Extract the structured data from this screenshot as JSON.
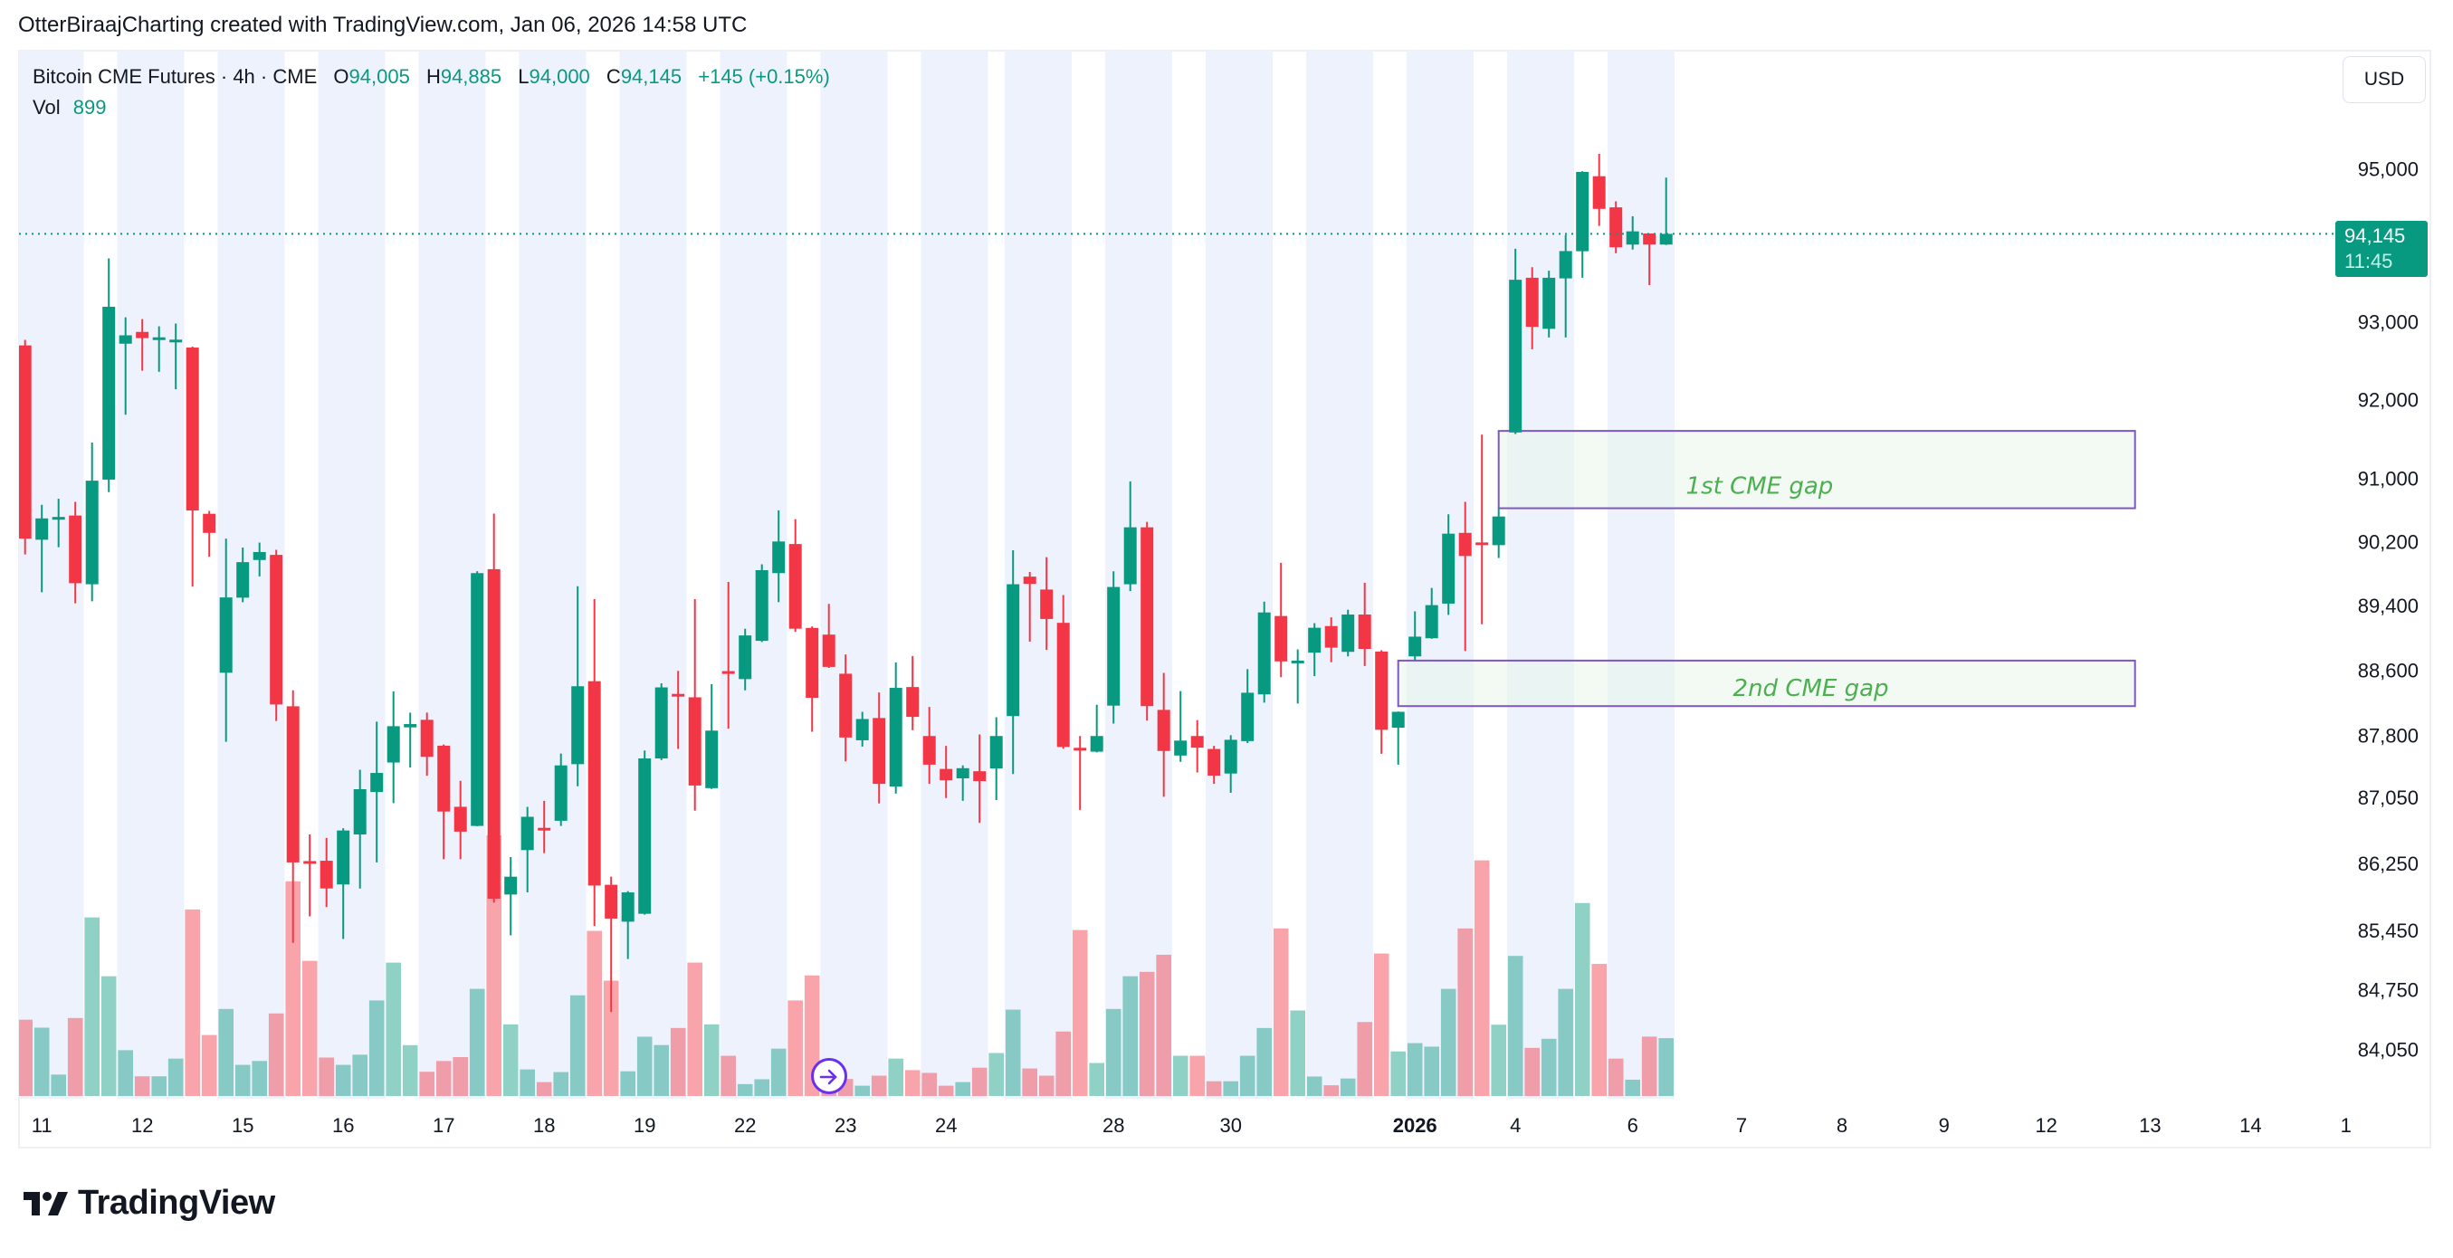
{
  "caption": "OtterBiraajCharting created with TradingView.com, Jan 06, 2026 14:58 UTC",
  "legend": {
    "symbol": "Bitcoin CME Futures",
    "sep": "·",
    "interval": "4h",
    "exchange": "CME",
    "o_label": "O",
    "o": "94,005",
    "h_label": "H",
    "h": "94,885",
    "l_label": "L",
    "l": "94,000",
    "c_label": "C",
    "c": "94,145",
    "change": "+145 (+0.15%)",
    "vol_label": "Vol",
    "vol": "899"
  },
  "currency_button": "USD",
  "last_price": {
    "price": "94,145",
    "countdown": "11:45"
  },
  "brand": "TradingView",
  "icons": {
    "navigate": "arrow-right-circle-icon",
    "logo": "tradingview-logo-icon"
  },
  "chart_data": {
    "type": "candlestick",
    "title": "",
    "price_scale": "log",
    "colors": {
      "up": "#089981",
      "down": "#F23645",
      "session_shade": "#EEF2FD",
      "box_border": "#7E57C2",
      "box_fill": "#E8F5E9",
      "box_text": "#4CAF50"
    },
    "last_price": 94145,
    "y_ticks": [
      95000,
      93000,
      92000,
      91000,
      90200,
      89400,
      88600,
      87800,
      87050,
      86250,
      85450,
      84750,
      84050
    ],
    "y_tick_labels": [
      "95,000",
      "93,000",
      "92,000",
      "91,000",
      "90,200",
      "89,400",
      "88,600",
      "87,800",
      "87,050",
      "86,250",
      "85,450",
      "84,750",
      "84,050"
    ],
    "x_ticks": [
      {
        "bar": 2,
        "label": "11"
      },
      {
        "bar": 8,
        "label": "12"
      },
      {
        "bar": 14,
        "label": "15"
      },
      {
        "bar": 20,
        "label": "16"
      },
      {
        "bar": 26,
        "label": "17"
      },
      {
        "bar": 32,
        "label": "18"
      },
      {
        "bar": 38,
        "label": "19"
      },
      {
        "bar": 44,
        "label": "22"
      },
      {
        "bar": 50,
        "label": "23"
      },
      {
        "bar": 56,
        "label": "24"
      },
      {
        "bar": 66,
        "label": "28"
      },
      {
        "bar": 73,
        "label": "30"
      },
      {
        "bar": 84,
        "label": "2026",
        "bold": true
      },
      {
        "bar": 90,
        "label": "4"
      },
      {
        "bar": 97,
        "label": "6"
      },
      {
        "bar": 103.5,
        "label": "7"
      },
      {
        "bar": 109.5,
        "label": "8"
      },
      {
        "bar": 115.6,
        "label": "9"
      },
      {
        "bar": 121.7,
        "label": "12"
      },
      {
        "bar": 127.9,
        "label": "13"
      },
      {
        "bar": 133.9,
        "label": "14"
      },
      {
        "bar": 139.6,
        "label": "1"
      }
    ],
    "off_session_bars": [
      5,
      6,
      11,
      12,
      17,
      18,
      23,
      24,
      29,
      30,
      35,
      36,
      41,
      42,
      47,
      48,
      53,
      54,
      59,
      64,
      65,
      70,
      71,
      76,
      77,
      82,
      83,
      88,
      89,
      94,
      95
    ],
    "bars_ohlcv": [
      [
        92696,
        92768,
        90040,
        90238,
        1186
      ],
      [
        90224,
        90664,
        89568,
        90492,
        1062
      ],
      [
        90480,
        90740,
        90130,
        90510,
        333
      ],
      [
        90528,
        90700,
        89430,
        89680,
        1212
      ],
      [
        89667,
        91452,
        89455,
        90968,
        2775
      ],
      [
        90982,
        93824,
        90824,
        93196,
        1861
      ],
      [
        92718,
        93058,
        91806,
        92826,
        712
      ],
      [
        92870,
        93036,
        92370,
        92790,
        306
      ],
      [
        92790,
        92942,
        92356,
        92800,
        306
      ],
      [
        92750,
        92978,
        92132,
        92770,
        581
      ],
      [
        92668,
        92680,
        89638,
        90592,
        2899
      ],
      [
        90550,
        90586,
        90010,
        90310,
        948
      ],
      [
        88570,
        90238,
        87723,
        89503,
        1353
      ],
      [
        89500,
        90126,
        89443,
        89943,
        484
      ],
      [
        89970,
        90188,
        89765,
        90070,
        544
      ],
      [
        90034,
        90098,
        87978,
        88180,
        1283
      ],
      [
        88158,
        88354,
        85305,
        86264,
        3336
      ],
      [
        86280,
        86600,
        85620,
        86250,
        2100
      ],
      [
        86284,
        86558,
        85730,
        85952,
        598
      ],
      [
        86000,
        86676,
        85350,
        86648,
        484
      ],
      [
        86600,
        87383,
        85952,
        87147,
        642
      ],
      [
        87113,
        87970,
        86264,
        87344,
        1485
      ],
      [
        87471,
        88340,
        86978,
        87914,
        2073
      ],
      [
        87900,
        88080,
        87410,
        87940,
        790
      ],
      [
        87992,
        88080,
        87310,
        87540,
        377
      ],
      [
        87676,
        87690,
        86303,
        86877,
        544
      ],
      [
        86934,
        87248,
        86303,
        86634,
        605
      ],
      [
        86703,
        89830,
        86700,
        89806,
        1665
      ],
      [
        89855,
        90552,
        85782,
        85830,
        4050
      ],
      [
        85880,
        86328,
        85394,
        86093,
        1113
      ],
      [
        86412,
        86934,
        85905,
        86813,
        413
      ],
      [
        86680,
        87006,
        86376,
        86650,
        216
      ],
      [
        86765,
        87580,
        86703,
        87436,
        372
      ],
      [
        87451,
        89642,
        87183,
        88404,
        1565
      ],
      [
        88466,
        89482,
        85505,
        85987,
        2566
      ],
      [
        85996,
        86093,
        84489,
        85593,
        1793
      ],
      [
        85556,
        85920,
        85113,
        85905,
        384
      ],
      [
        85650,
        87617,
        85640,
        87521,
        921
      ],
      [
        87521,
        88440,
        87500,
        88390,
        792
      ],
      [
        88310,
        88594,
        87636,
        88280,
        1057
      ],
      [
        88268,
        89482,
        86887,
        87192,
        2073
      ],
      [
        87160,
        88430,
        87150,
        87860,
        1113
      ],
      [
        88590,
        89696,
        87884,
        88575,
        625
      ],
      [
        88492,
        89114,
        88354,
        89031,
        185
      ],
      [
        88964,
        89917,
        88950,
        89843,
        260
      ],
      [
        89806,
        90594,
        89443,
        90202,
        736
      ],
      [
        90170,
        90482,
        89076,
        89114,
        1485
      ],
      [
        89124,
        89143,
        87846,
        88262,
        1873
      ],
      [
        89041,
        89423,
        88630,
        88642,
        280
      ],
      [
        88558,
        88796,
        87485,
        87776,
        265
      ],
      [
        87742,
        88090,
        87665,
        88002,
        160
      ],
      [
        88014,
        88328,
        86974,
        87212,
        316
      ],
      [
        87179,
        88696,
        87093,
        88384,
        581
      ],
      [
        88394,
        88776,
        87866,
        88028,
        402
      ],
      [
        87794,
        88150,
        87212,
        87445,
        359
      ],
      [
        87393,
        87674,
        87040,
        87254,
        160
      ],
      [
        87279,
        87436,
        87006,
        87402,
        216
      ],
      [
        87365,
        87813,
        86740,
        87245,
        440
      ],
      [
        87399,
        88024,
        87016,
        87794,
        668
      ],
      [
        88038,
        90092,
        87331,
        89667,
        1342
      ],
      [
        89762,
        89820,
        88954,
        89672,
        428
      ],
      [
        89601,
        90005,
        88852,
        89235,
        316
      ],
      [
        89187,
        89533,
        87640,
        87661,
        1002
      ],
      [
        87650,
        87794,
        86896,
        87636,
        2579
      ],
      [
        87603,
        88176,
        87594,
        87794,
        513
      ],
      [
        88166,
        89829,
        87946,
        89633,
        1353
      ],
      [
        89667,
        90960,
        89581,
        90380,
        1861
      ],
      [
        90380,
        90448,
        87982,
        88160,
        1929
      ],
      [
        88114,
        88568,
        87055,
        87612,
        2195
      ],
      [
        87556,
        88344,
        87479,
        87738,
        625
      ],
      [
        87794,
        87988,
        87350,
        87652,
        625
      ],
      [
        87636,
        87674,
        87212,
        87312,
        229
      ],
      [
        87337,
        87804,
        87103,
        87748,
        229
      ],
      [
        87732,
        88614,
        87708,
        88324,
        625
      ],
      [
        88304,
        89451,
        88202,
        89316,
        1057
      ],
      [
        89272,
        89935,
        88516,
        88710,
        2604
      ],
      [
        88700,
        88858,
        88192,
        88720,
        1329
      ],
      [
        88818,
        89183,
        88528,
        89126,
        303
      ],
      [
        89147,
        89255,
        88700,
        88880,
        167
      ],
      [
        88828,
        89350,
        88772,
        89290,
        272
      ],
      [
        89290,
        89686,
        88654,
        88864,
        1150
      ],
      [
        88832,
        88848,
        87578,
        87870,
        2214
      ],
      [
        87896,
        88094,
        87445,
        88090,
        693
      ],
      [
        88772,
        89330,
        88726,
        89016,
        822
      ],
      [
        88996,
        89621,
        88990,
        89407,
        767
      ],
      [
        89426,
        90544,
        89286,
        90300,
        1665
      ],
      [
        90310,
        90700,
        88838,
        90020,
        2604
      ],
      [
        90190,
        91552,
        89170,
        90170,
        3662
      ],
      [
        90156,
        90618,
        89995,
        90516,
        1108
      ],
      [
        91580,
        93950,
        91560,
        93546,
        2177
      ],
      [
        93572,
        93709,
        92646,
        92936,
        748
      ],
      [
        92910,
        93664,
        92798,
        93572,
        889
      ],
      [
        93564,
        94130,
        92798,
        93920,
        1665
      ],
      [
        93918,
        94970,
        93572,
        94960,
        2999
      ],
      [
        94903,
        95198,
        94250,
        94473,
        2053
      ],
      [
        94493,
        94572,
        93892,
        93970,
        581
      ],
      [
        94005,
        94376,
        93940,
        94178,
        253
      ],
      [
        94150,
        94150,
        93477,
        94005,
        923
      ],
      [
        94005,
        94885,
        94000,
        94145,
        899
      ]
    ],
    "annotations": [
      {
        "label": "1st CME gap",
        "from_bar": 89,
        "to_bar": 127,
        "top": 91600,
        "bottom": 90620
      },
      {
        "label": "2nd CME gap",
        "from_bar": 83,
        "to_bar": 127,
        "top": 88720,
        "bottom": 88160
      }
    ]
  }
}
